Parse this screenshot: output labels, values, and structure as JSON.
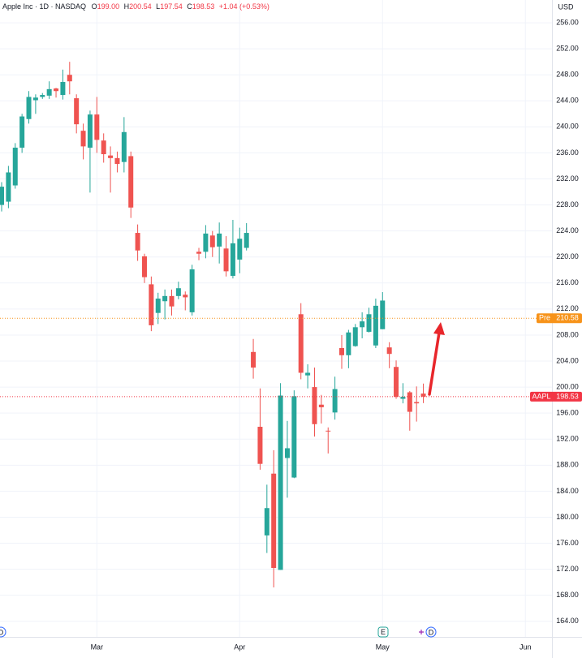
{
  "chart_data": {
    "type": "candlestick",
    "header": {
      "symbol": "Apple Inc · 1D · NASDAQ",
      "legend": [
        {
          "key": "O",
          "value": "199.00"
        },
        {
          "key": "H",
          "value": "200.54"
        },
        {
          "key": "L",
          "value": "197.54"
        },
        {
          "key": "C",
          "value": "198.53"
        }
      ],
      "change": "+1.04 (+0.53%)"
    },
    "currency": "USD",
    "up_color": "#26a69a",
    "down_color": "#ef5350",
    "categories": [
      null,
      null,
      null,
      null,
      null,
      null,
      null,
      null,
      null,
      null,
      null,
      null,
      null,
      null,
      "Mar",
      null,
      null,
      null,
      null,
      null,
      null,
      null,
      null,
      null,
      null,
      null,
      null,
      null,
      null,
      null,
      null,
      null,
      null,
      null,
      null,
      "Apr",
      null,
      null,
      null,
      null,
      null,
      null,
      null,
      null,
      null,
      null,
      null,
      null,
      null,
      null,
      null,
      null,
      null,
      null,
      null,
      null,
      "May",
      null,
      null,
      null,
      null,
      null,
      null,
      null,
      null,
      null,
      null,
      null,
      null,
      null,
      null,
      null,
      null,
      null,
      null,
      null,
      null,
      "Jun",
      null,
      null,
      null
    ],
    "open": [
      228.0,
      228.5,
      231.0,
      236.8,
      241.2,
      244.1,
      244.6,
      244.8,
      245.9,
      244.9,
      248.0,
      244.4,
      239.4,
      236.8,
      241.9,
      237.9,
      235.6,
      235.2,
      234.6,
      235.5,
      223.7,
      220.1,
      215.8,
      211.4,
      213.2,
      214.0,
      214.0,
      214.2,
      211.5,
      220.8,
      220.8,
      223.3,
      221.6,
      221.3,
      217.1,
      219.6,
      221.4,
      205.4,
      193.9,
      177.2,
      186.7,
      171.9,
      189.1,
      186.1,
      211.2,
      201.8,
      200.0,
      197.3,
      193.3,
      196.1,
      206.0,
      204.9,
      206.3,
      209.2,
      208.5,
      206.4,
      208.9,
      206.1,
      203.1,
      198.2,
      199.2,
      197.7,
      199.0,
      null,
      null,
      null,
      null,
      null,
      null,
      null,
      null,
      null,
      null,
      null,
      null,
      null,
      null,
      null,
      null,
      null,
      null
    ],
    "high": [
      231.5,
      234.0,
      237.5,
      242.0,
      245.5,
      245.0,
      245.2,
      247.0,
      246.0,
      248.8,
      250.0,
      245.0,
      240.5,
      242.5,
      244.6,
      239.0,
      237.0,
      236.2,
      241.5,
      236.2,
      225.0,
      220.5,
      217.0,
      214.5,
      215.0,
      215.0,
      216.2,
      214.7,
      218.8,
      221.4,
      224.9,
      224.0,
      225.3,
      223.2,
      225.7,
      224.5,
      225.2,
      207.4,
      199.8,
      185.0,
      190.3,
      200.6,
      194.8,
      199.5,
      212.9,
      203.5,
      203.0,
      198.8,
      193.8,
      201.6,
      208.0,
      208.8,
      209.7,
      211.5,
      212.2,
      213.6,
      214.6,
      206.9,
      204.1,
      200.6,
      199.4,
      200.1,
      200.54,
      null,
      null,
      null,
      null,
      null,
      null,
      null,
      null,
      null,
      null,
      null,
      null,
      null,
      null,
      null,
      null,
      null,
      null
    ],
    "low": [
      227.0,
      227.5,
      230.5,
      236.0,
      240.5,
      242.0,
      244.3,
      244.3,
      244.5,
      244.2,
      245.0,
      239.0,
      235.0,
      229.9,
      236.0,
      234.5,
      229.9,
      233.0,
      233.0,
      226.0,
      219.4,
      216.0,
      208.6,
      209.7,
      210.4,
      211.0,
      213.5,
      211.8,
      211.0,
      219.5,
      219.8,
      220.0,
      219.0,
      217.0,
      216.7,
      217.5,
      221.0,
      201.3,
      187.3,
      174.5,
      169.2,
      171.9,
      183.0,
      186.0,
      201.2,
      199.8,
      192.4,
      194.4,
      189.8,
      195.0,
      202.8,
      202.9,
      206.2,
      207.5,
      208.4,
      206.0,
      208.9,
      202.9,
      198.2,
      197.5,
      193.3,
      194.7,
      197.54,
      null,
      null,
      null,
      null,
      null,
      null,
      null,
      null,
      null,
      null,
      null,
      null,
      null,
      null,
      null,
      null,
      null,
      null
    ],
    "close": [
      230.8,
      233.0,
      236.8,
      241.6,
      244.6,
      244.5,
      244.9,
      245.8,
      245.5,
      246.9,
      247.0,
      240.4,
      237.0,
      241.9,
      238.0,
      235.8,
      235.2,
      234.3,
      239.2,
      227.6,
      221.0,
      216.9,
      209.5,
      213.6,
      214.0,
      212.4,
      215.2,
      213.8,
      218.1,
      220.5,
      223.6,
      221.5,
      223.6,
      217.8,
      222.1,
      222.8,
      223.7,
      203.0,
      188.2,
      181.4,
      172.2,
      198.7,
      190.6,
      198.6,
      202.2,
      202.2,
      194.3,
      196.9,
      193.2,
      199.7,
      204.9,
      208.4,
      209.2,
      210.1,
      211.2,
      212.5,
      213.3,
      205.1,
      198.5,
      198.5,
      196.2,
      197.5,
      198.53,
      null,
      null,
      null,
      null,
      null,
      null,
      null,
      null,
      null,
      null,
      null,
      null,
      null,
      null,
      null,
      null,
      null,
      null
    ],
    "ylim": [
      161.6,
      259.5
    ],
    "yticks": [
      {
        "value": 164,
        "label": "164.00"
      },
      {
        "value": 168,
        "label": "168.00"
      },
      {
        "value": 172,
        "label": "172.00"
      },
      {
        "value": 176,
        "label": "176.00"
      },
      {
        "value": 180,
        "label": "180.00"
      },
      {
        "value": 184,
        "label": "184.00"
      },
      {
        "value": 188,
        "label": "188.00"
      },
      {
        "value": 192,
        "label": "192.00"
      },
      {
        "value": 196,
        "label": "196.00"
      },
      {
        "value": 200,
        "label": "200.00"
      },
      {
        "value": 204,
        "label": "204.00"
      },
      {
        "value": 208,
        "label": "208.00"
      },
      {
        "value": 212,
        "label": "212.00"
      },
      {
        "value": 216,
        "label": "216.00"
      },
      {
        "value": 220,
        "label": "220.00"
      },
      {
        "value": 224,
        "label": "224.00"
      },
      {
        "value": 228,
        "label": "228.00"
      },
      {
        "value": 232,
        "label": "232.00"
      },
      {
        "value": 236,
        "label": "236.00"
      },
      {
        "value": 240,
        "label": "240.00"
      },
      {
        "value": 244,
        "label": "244.00"
      },
      {
        "value": 248,
        "label": "248.00"
      },
      {
        "value": 252,
        "label": "252.00"
      },
      {
        "value": 256,
        "label": "256.00"
      }
    ],
    "grid": true,
    "price_lines": [
      {
        "label": "Pre",
        "value": 210.58,
        "value_label": "210.58",
        "color": "#f7931a"
      },
      {
        "label": "AAPL",
        "value": 198.53,
        "value_label": "198.53",
        "color": "#f23645"
      }
    ],
    "events": [
      {
        "label": "D"
      },
      {
        "label": "E"
      },
      {
        "label": "D"
      }
    ]
  }
}
